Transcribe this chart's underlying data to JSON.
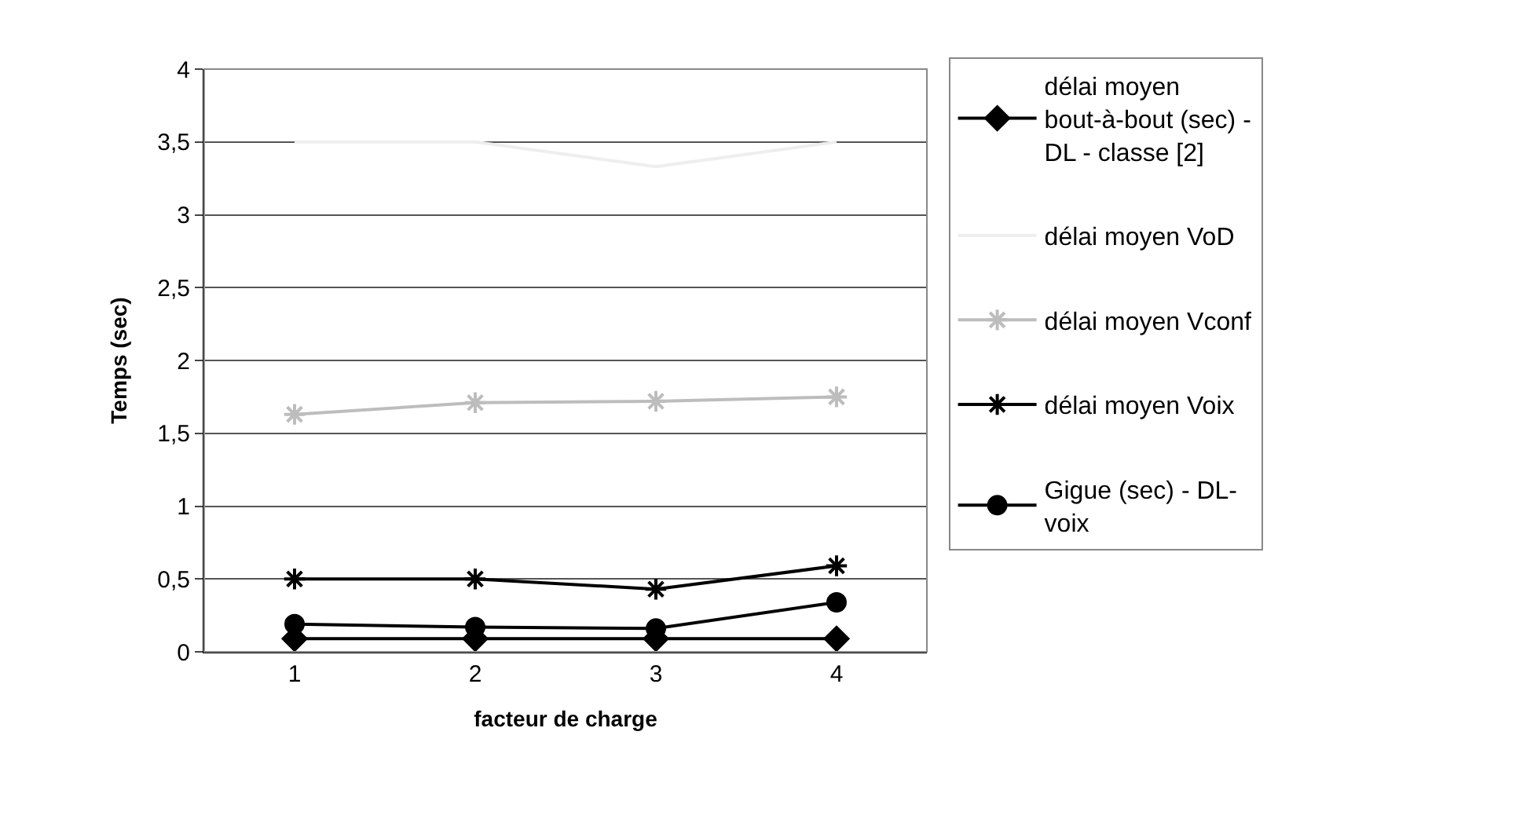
{
  "chart_data": {
    "type": "line",
    "xlabel": "facteur de charge",
    "ylabel": "Temps (sec)",
    "categories": [
      "1",
      "2",
      "3",
      "4"
    ],
    "series": [
      {
        "name": "délai moyen bout-à-bout (sec) - DL - classe [2]",
        "color": "#000000",
        "marker": "diamond",
        "values": [
          0.09,
          0.09,
          0.09,
          0.09
        ]
      },
      {
        "name": "délai moyen VoD",
        "color": "#eeeeee",
        "marker": "none",
        "values": [
          3.5,
          3.5,
          3.33,
          3.5
        ]
      },
      {
        "name": "délai moyen Vconf",
        "color": "#bdbdbd",
        "marker": "cross",
        "values": [
          1.63,
          1.71,
          1.72,
          1.75
        ]
      },
      {
        "name": "délai moyen Voix",
        "color": "#000000",
        "marker": "cross",
        "values": [
          0.5,
          0.5,
          0.43,
          0.59
        ]
      },
      {
        "name": "Gigue (sec) - DL- voix",
        "color": "#000000",
        "marker": "circle",
        "values": [
          0.19,
          0.17,
          0.16,
          0.34
        ]
      }
    ],
    "ylim": [
      0,
      4
    ],
    "yticks": [
      {
        "value": 0,
        "label": "0"
      },
      {
        "value": 0.5,
        "label": "0,5"
      },
      {
        "value": 1,
        "label": "1"
      },
      {
        "value": 1.5,
        "label": "1,5"
      },
      {
        "value": 2,
        "label": "2"
      },
      {
        "value": 2.5,
        "label": "2,5"
      },
      {
        "value": 3,
        "label": "3"
      },
      {
        "value": 3.5,
        "label": "3,5"
      },
      {
        "value": 4,
        "label": "4"
      }
    ],
    "grid": "y",
    "legend": "right"
  }
}
